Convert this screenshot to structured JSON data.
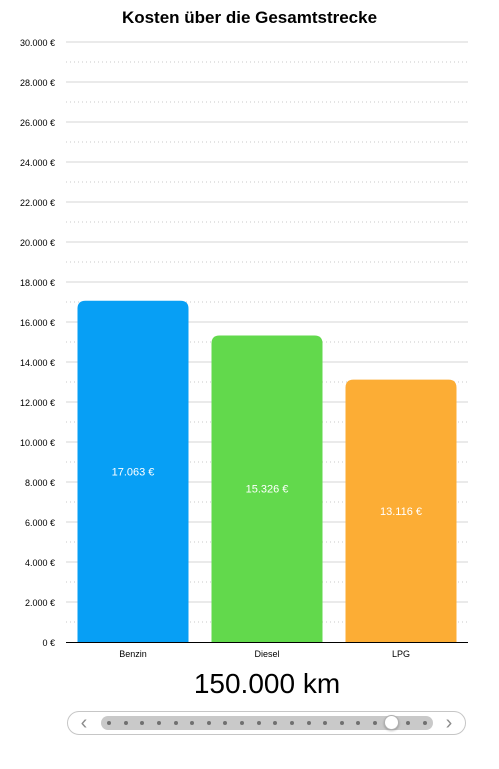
{
  "chart_data": {
    "type": "bar",
    "title": "Kosten über die Gesamtstrecke",
    "categories": [
      "Benzin",
      "Diesel",
      "LPG"
    ],
    "values": [
      17063,
      15326,
      13116
    ],
    "value_labels": [
      "17.063 €",
      "15.326 €",
      "13.116 €"
    ],
    "colors": [
      "#079ff5",
      "#62d94c",
      "#fcad35"
    ],
    "ylim": [
      0,
      30000
    ],
    "ytick_step": 2000,
    "yticks": [
      "0 €",
      "2.000 €",
      "4.000 €",
      "6.000 €",
      "8.000 €",
      "10.000 €",
      "12.000 €",
      "14.000 €",
      "16.000 €",
      "18.000 €",
      "20.000 €",
      "22.000 €",
      "24.000 €",
      "26.000 €",
      "28.000 €",
      "30.000 €"
    ],
    "grid": true,
    "legend": "none"
  },
  "distance": {
    "label": "150.000 km"
  },
  "slider": {
    "prev_icon": "chevron-left-icon",
    "next_icon": "chevron-right-icon",
    "prev_glyph": "‹",
    "next_glyph": "›",
    "steps": 20,
    "selected_step": 17
  }
}
